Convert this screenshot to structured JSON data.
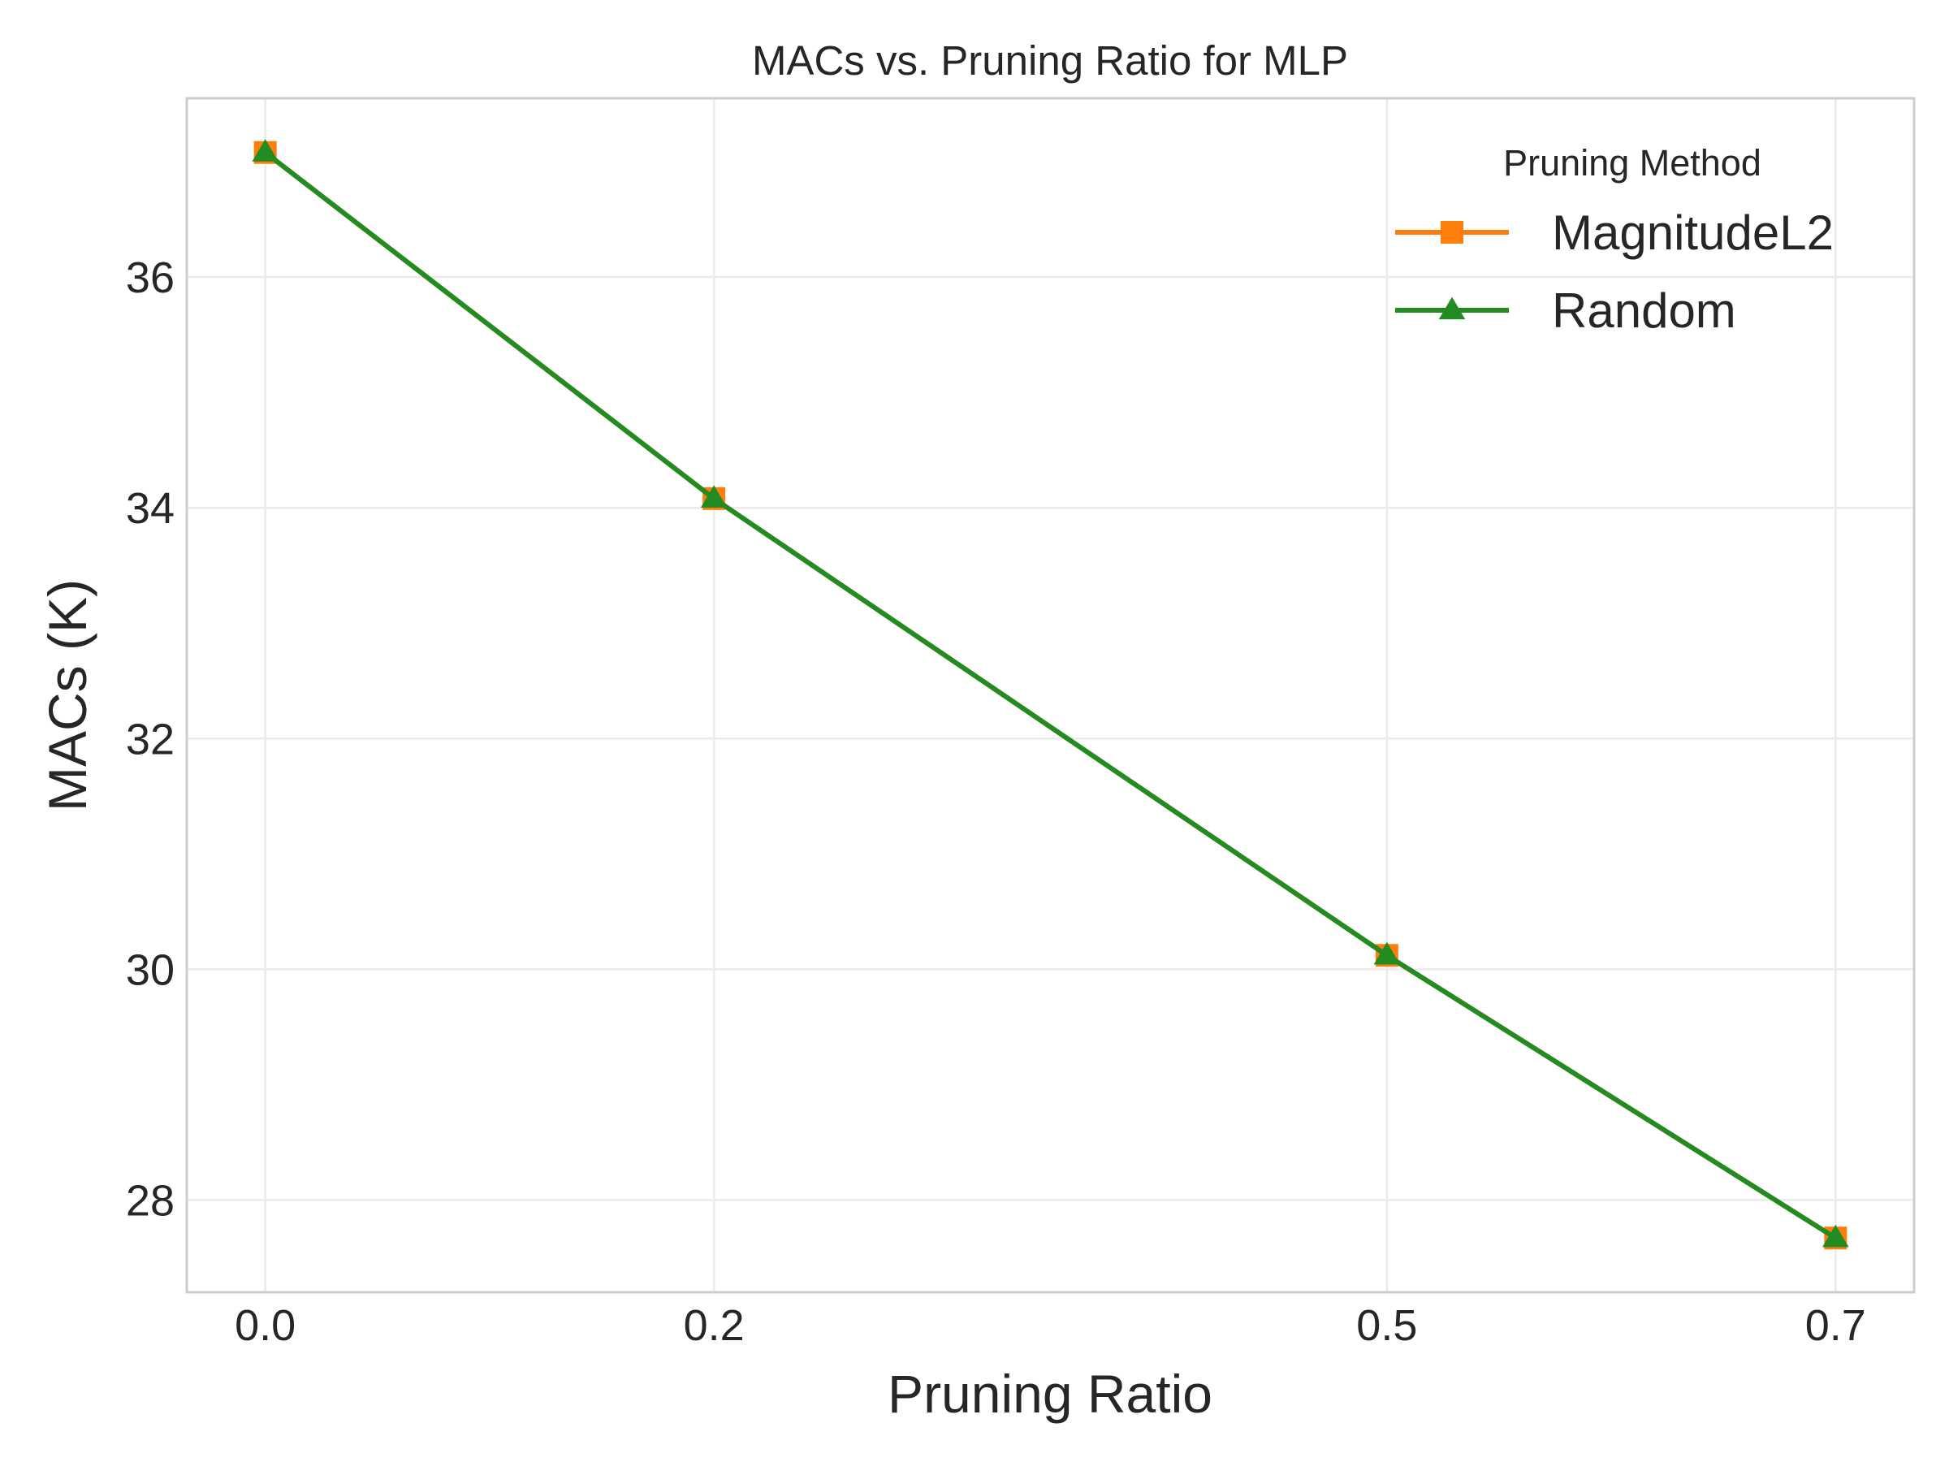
{
  "chart_data": {
    "type": "line",
    "title": "MACs vs. Pruning Ratio for MLP",
    "xlabel": "Pruning Ratio",
    "ylabel": "MACs (K)",
    "x": [
      0.0,
      0.2,
      0.5,
      0.7
    ],
    "x_tick_labels": [
      "0.0",
      "0.2",
      "0.5",
      "0.7"
    ],
    "y_ticks": [
      28,
      30,
      32,
      34,
      36
    ],
    "y_tick_labels": [
      "28",
      "30",
      "32",
      "34",
      "36"
    ],
    "xlim": [
      -0.035,
      0.735
    ],
    "ylim": [
      27.2,
      37.55
    ],
    "grid": true,
    "legend": {
      "title": "Pruning Method",
      "placement": "top-right"
    },
    "series": [
      {
        "name": "MagnitudeL2",
        "color": "#ff7f0e",
        "marker": "square",
        "values": [
          37.08,
          34.08,
          30.12,
          27.67
        ]
      },
      {
        "name": "Random",
        "color": "#228b22",
        "marker": "triangle",
        "values": [
          37.08,
          34.08,
          30.12,
          27.67
        ]
      }
    ]
  }
}
